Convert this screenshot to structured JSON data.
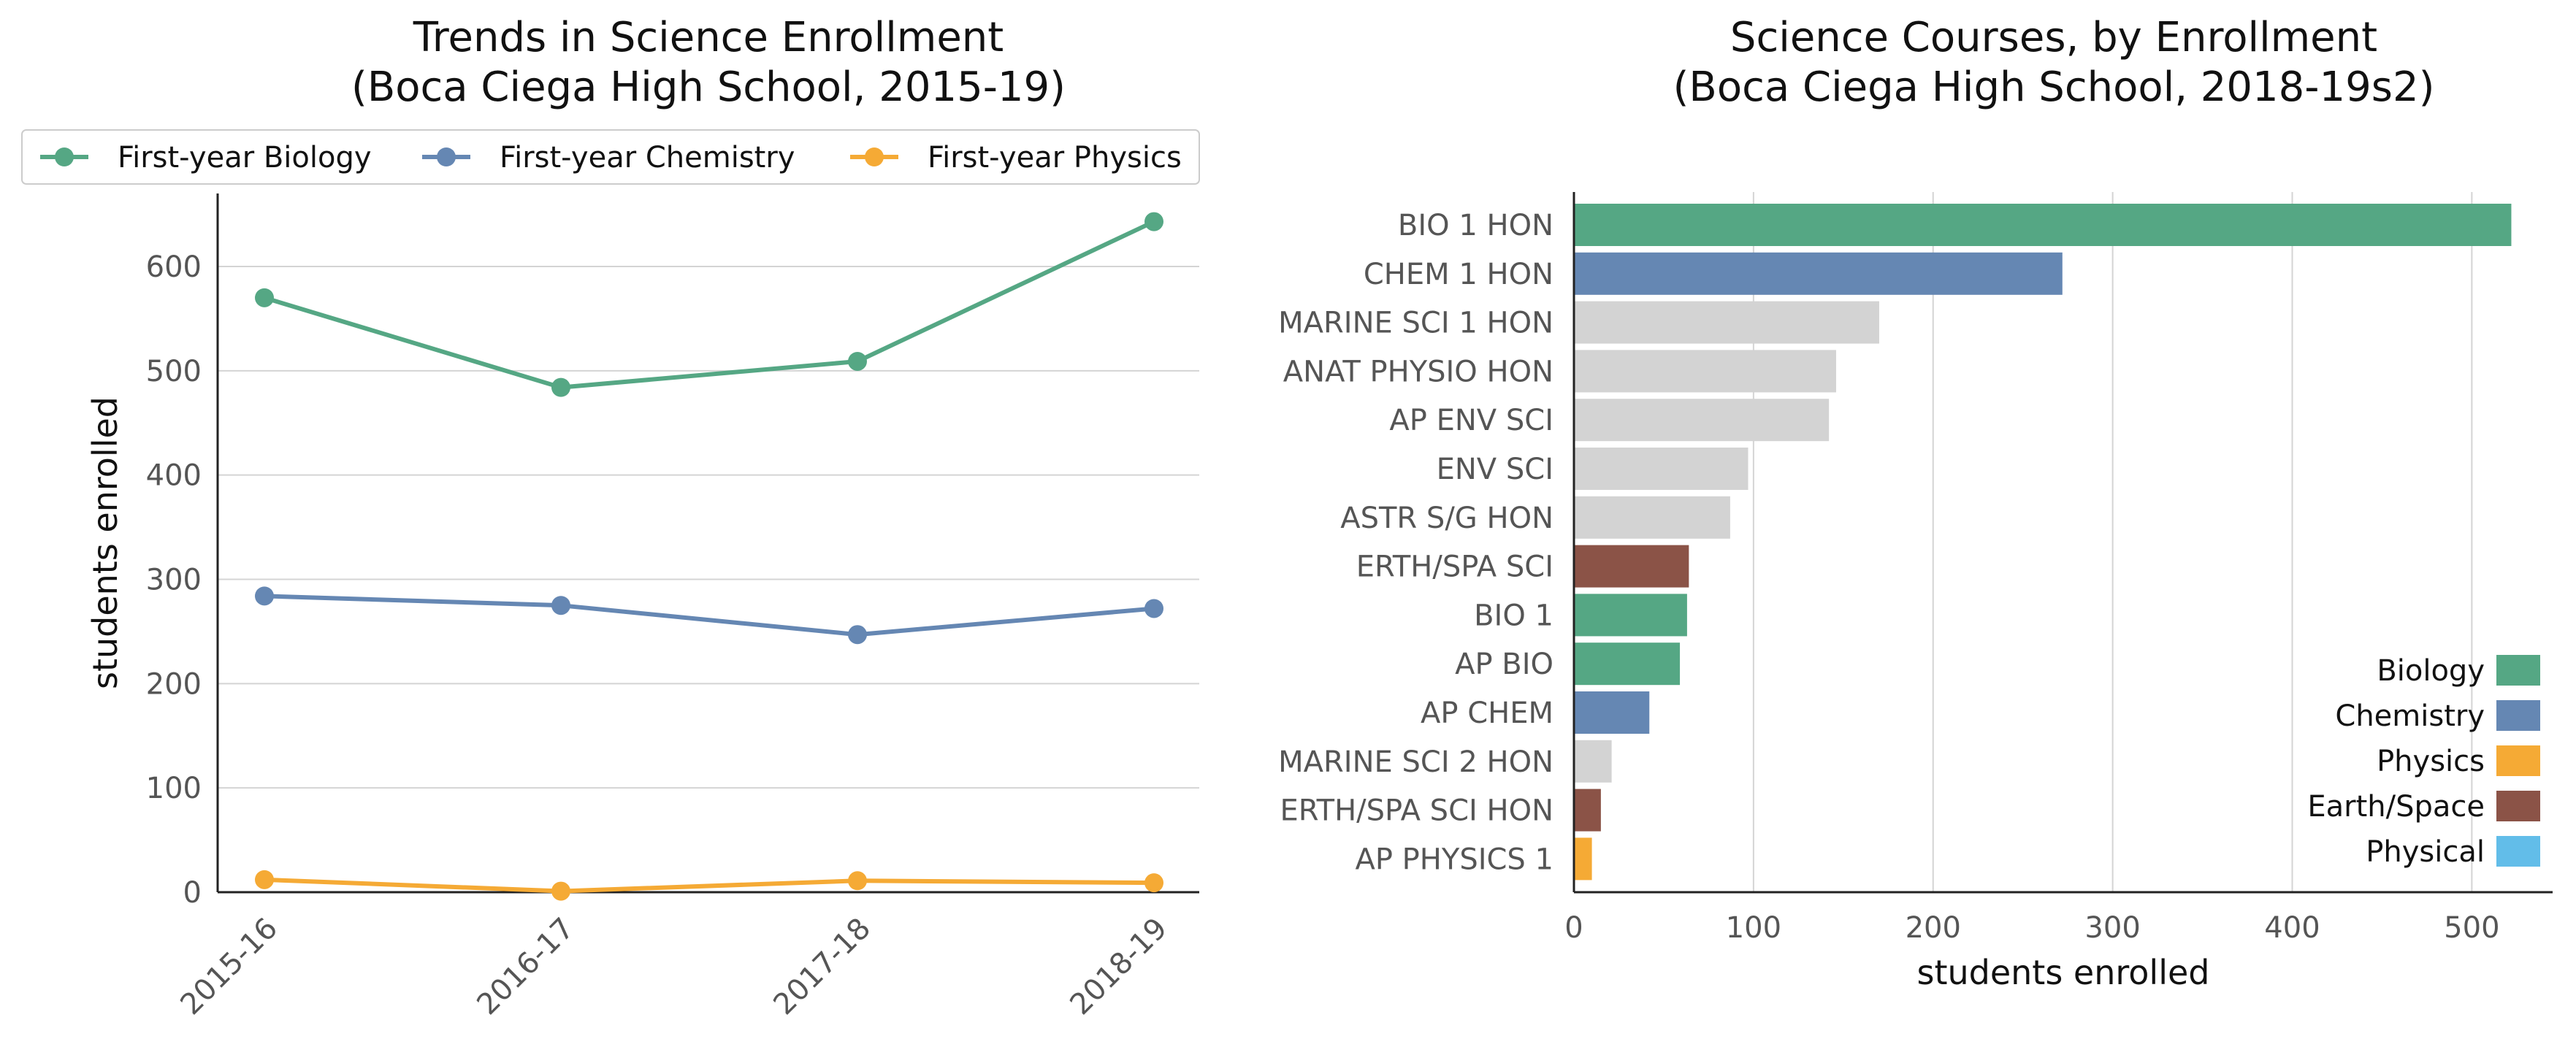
{
  "chart_data": [
    {
      "type": "line",
      "title": [
        "Trends in Science Enrollment",
        "(Boca Ciega High School, 2015-19)"
      ],
      "xlabel": "",
      "ylabel": "students enrolled",
      "categories": [
        "2015-16",
        "2016-17",
        "2017-18",
        "2018-19"
      ],
      "ylim": [
        0,
        670
      ],
      "yticks": [
        0,
        100,
        200,
        300,
        400,
        500,
        600
      ],
      "grid": true,
      "legend_position": "top",
      "series": [
        {
          "name": "First-year Biology",
          "color": "#55a784",
          "values": [
            570,
            484,
            509,
            643
          ]
        },
        {
          "name": "First-year Chemistry",
          "color": "#6587b3",
          "values": [
            284,
            275,
            247,
            272
          ]
        },
        {
          "name": "First-year Physics",
          "color": "#f5aa35",
          "values": [
            12,
            1,
            11,
            9
          ]
        }
      ]
    },
    {
      "type": "bar",
      "orientation": "horizontal",
      "title": [
        "Science Courses, by Enrollment",
        "(Boca Ciega High School, 2018-19s2)"
      ],
      "xlabel": "students enrolled",
      "ylabel": "",
      "xlim": [
        0,
        545
      ],
      "xticks": [
        0,
        100,
        200,
        300,
        400,
        500
      ],
      "grid": true,
      "legend_position": "lower-right",
      "categories": [
        "BIO 1 HON",
        "CHEM 1 HON",
        "MARINE SCI 1 HON",
        "ANAT PHYSIO HON",
        "AP ENV SCI",
        "ENV SCI",
        "ASTR S/G HON",
        "ERTH/SPA SCI",
        "BIO 1",
        "AP BIO",
        "AP CHEM",
        "MARINE SCI 2 HON",
        "ERTH/SPA SCI HON",
        "AP PHYSICS 1"
      ],
      "values": [
        522,
        272,
        170,
        146,
        142,
        97,
        87,
        64,
        63,
        59,
        42,
        21,
        15,
        10
      ],
      "bar_colors": [
        "#55a784",
        "#6587b3",
        "#d3d3d3",
        "#d3d3d3",
        "#d3d3d3",
        "#d3d3d3",
        "#d3d3d3",
        "#8b5347",
        "#55a784",
        "#55a784",
        "#6587b3",
        "#d3d3d3",
        "#8b5347",
        "#f5aa35"
      ],
      "legend": [
        {
          "name": "Biology",
          "color": "#55a784"
        },
        {
          "name": "Chemistry",
          "color": "#6587b3"
        },
        {
          "name": "Physics",
          "color": "#f5aa35"
        },
        {
          "name": "Earth/Space",
          "color": "#8b5347"
        },
        {
          "name": "Physical",
          "color": "#62bde9"
        }
      ]
    }
  ]
}
